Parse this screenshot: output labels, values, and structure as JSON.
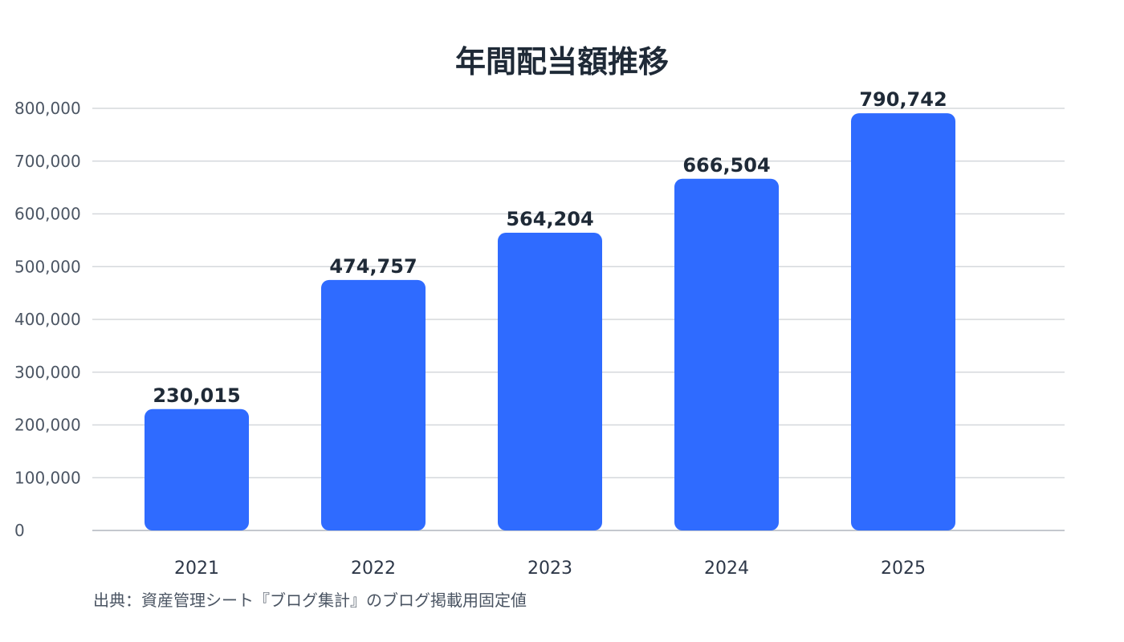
{
  "chart_data": {
    "type": "bar",
    "title": "年間配当額推移",
    "categories": [
      "2021",
      "2022",
      "2023",
      "2024",
      "2025"
    ],
    "values": [
      230015,
      474757,
      564204,
      666504,
      790742
    ],
    "data_labels": [
      "230,015",
      "474,757",
      "564,204",
      "666,504",
      "790,742"
    ],
    "y_ticks": [
      "0",
      "100,000",
      "200,000",
      "300,000",
      "400,000",
      "500,000",
      "600,000",
      "700,000",
      "800,000"
    ],
    "ylim": [
      0,
      800000
    ],
    "grid": true,
    "bar_color": "#2f6bff",
    "source_note": "出典：資産管理シート『ブログ集計』のブログ掲載用固定値"
  }
}
